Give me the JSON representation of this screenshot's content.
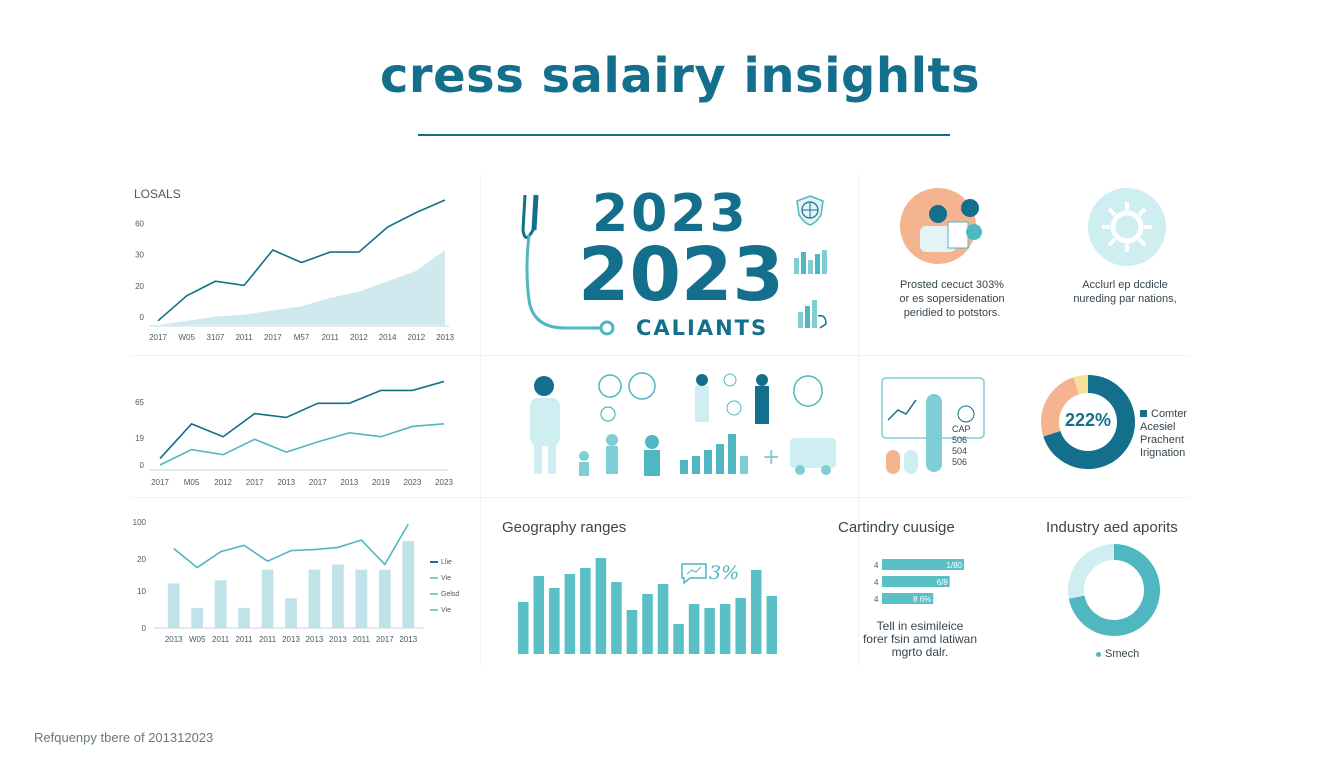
{
  "title": "cress salairy insighlts",
  "footer": "Refquenpy tbere of 201312023",
  "center": {
    "year_small": "2023",
    "year_large": "2023",
    "subtitle": "CALIANTS"
  },
  "cards": {
    "card1_text": [
      "Prosted cecuct 303%",
      "or es sopersidenation",
      "peridied to potstors."
    ],
    "card2_text": [
      "Acclurl ep dcdicle",
      "nureding par nations,"
    ],
    "mini_dash_labels": [
      "CAP",
      "506",
      "504",
      "506"
    ]
  },
  "donut1": {
    "center_label": "222%",
    "legend": [
      "Comter",
      "Acesiel",
      "Prachent",
      "Irignation"
    ],
    "colors": [
      "#136f8c",
      "#f4b48f",
      "#f6e09a"
    ]
  },
  "sections": {
    "geography": "Geography ranges",
    "geography_badge": "3%",
    "cartindry": "Cartindry cuusige",
    "cartindry_bars": [
      "1/80",
      "6/8",
      "8 6%"
    ],
    "cartindry_text": [
      "Tell in esimileice",
      "forer fsin amd latiwan",
      "mgrto dalr."
    ],
    "industry": "Industry aed aporits",
    "industry_legend": "Smech"
  },
  "chart_data": [
    {
      "type": "area",
      "title": "LOSALS",
      "categories": [
        "2017",
        "W05",
        "3107",
        "2011",
        "2017",
        "M57",
        "2011",
        "2012",
        "2014",
        "2012",
        "2013"
      ],
      "series": [
        {
          "values": [
            2,
            14,
            21,
            19,
            36,
            30,
            35,
            35,
            47,
            54,
            60
          ]
        },
        {
          "values": [
            0,
            2,
            4,
            5,
            7,
            9,
            13,
            16,
            21,
            26,
            36
          ]
        }
      ],
      "yticks": [
        "60",
        "30",
        "20",
        "0"
      ],
      "ylim": [
        0,
        60
      ]
    },
    {
      "type": "line",
      "categories": [
        "2017",
        "M05",
        "2012",
        "2017",
        "2013",
        "2017",
        "2013",
        "2019",
        "2023",
        "2023"
      ],
      "series": [
        {
          "values": [
            5,
            32,
            22,
            40,
            37,
            48,
            48,
            58,
            58,
            65
          ]
        },
        {
          "values": [
            0,
            12,
            8,
            20,
            10,
            18,
            25,
            22,
            30,
            32
          ]
        }
      ],
      "yticks": [
        "65",
        "19",
        "0"
      ],
      "ylim": [
        0,
        70
      ]
    },
    {
      "type": "bar",
      "categories": [
        "2013",
        "W05",
        "2011",
        "2011",
        "2011",
        "2013",
        "2013",
        "2013",
        "2011",
        "2017",
        "2013"
      ],
      "values": [
        42,
        19,
        45,
        19,
        55,
        28,
        55,
        60,
        55,
        55,
        82
      ],
      "bars2": [
        0,
        0,
        0,
        0,
        0,
        0,
        0,
        0,
        0,
        0,
        0
      ],
      "line": [
        75,
        57,
        72,
        78,
        63,
        73,
        74,
        76,
        83,
        60,
        98
      ],
      "yticks": [
        "100",
        "20",
        "10",
        "0"
      ],
      "ylim": [
        0,
        100
      ],
      "legend": [
        "Llie",
        "Vie",
        "Gelsd",
        "Vie"
      ]
    },
    {
      "type": "bar",
      "title": "Geography ranges",
      "values": [
        52,
        78,
        66,
        80,
        86,
        96,
        72,
        44,
        60,
        70,
        30,
        50,
        46,
        50,
        56,
        84,
        58
      ]
    },
    {
      "type": "bar",
      "title": "Cartindry cuusige",
      "categories": [
        "4",
        "4",
        "4"
      ],
      "values": [
        80,
        66,
        50
      ]
    },
    {
      "type": "pie",
      "title": "Industry aed aporits",
      "values": [
        72,
        28
      ]
    }
  ]
}
